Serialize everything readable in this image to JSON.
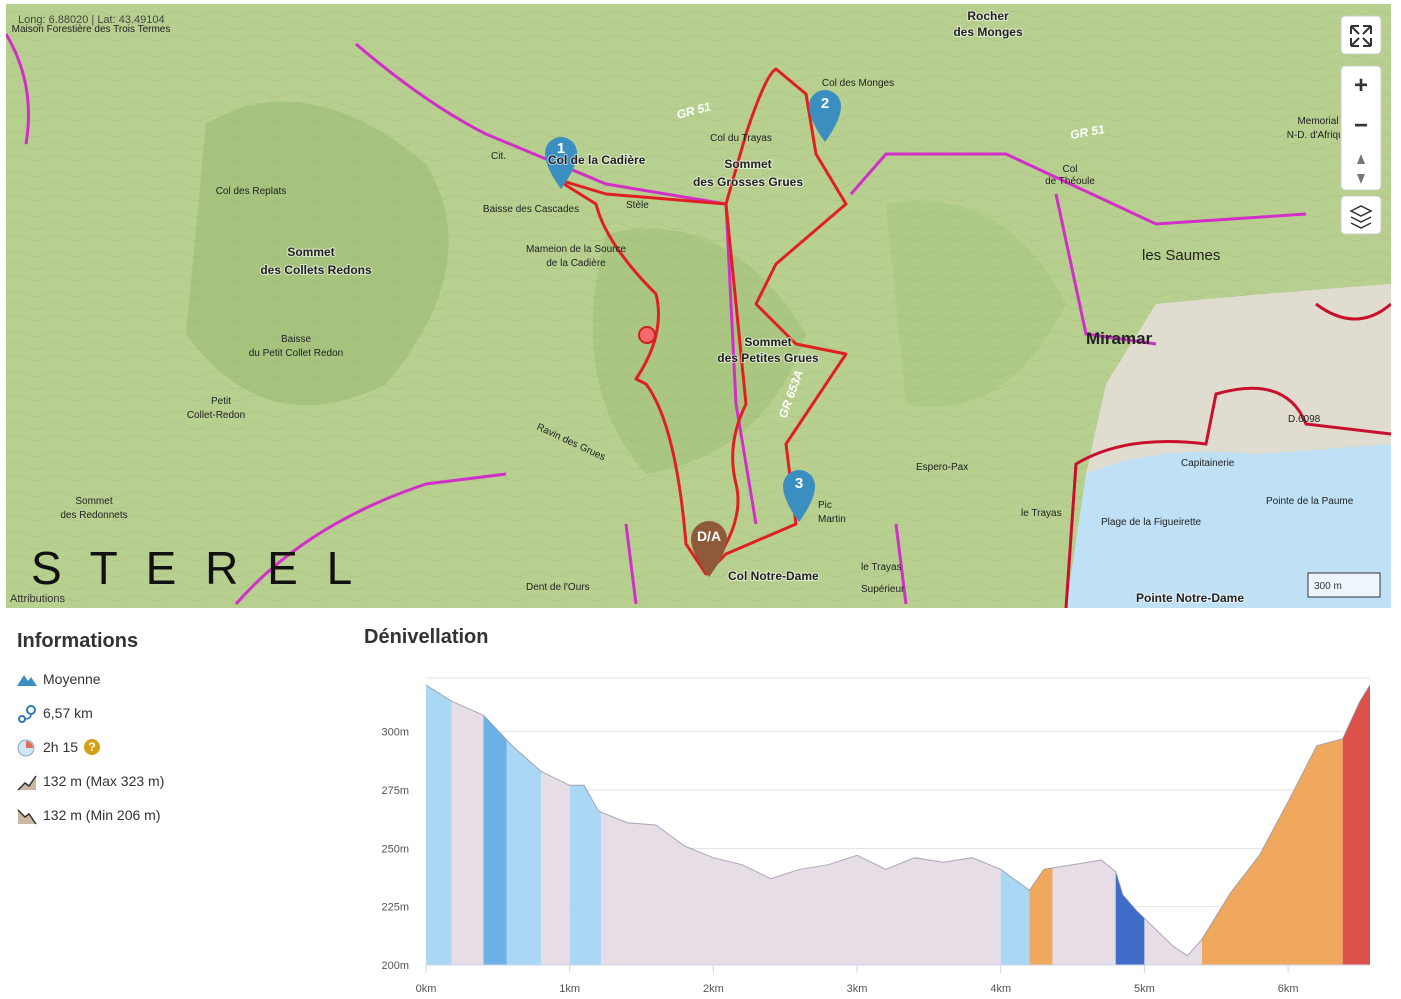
{
  "map": {
    "coords": "Long: 6.88020 | Lat: 43.49104",
    "attributions": "Attributions",
    "scale": "300 m",
    "controls": {
      "zoom_in": "+",
      "zoom_out": "−"
    },
    "markers": [
      "1",
      "2",
      "3",
      "D/A"
    ],
    "labels": [
      "Maison Forestière des Trois Termes",
      "Col des Replats",
      "Sommet",
      "des Collets Redons",
      "Baisse",
      "du Petit Collet Redon",
      "Petit",
      "Collet-Redon",
      "Sommet",
      "des Redonnets",
      "Col de la Cadière",
      "Baisse des Cascades",
      "Mameion de la Source",
      "de la Cadière",
      "Sommet",
      "des Grosses Grues",
      "Col du Trayas",
      "Col des Monges",
      "Rocher",
      "des Monges",
      "Sommet",
      "des Petites Grues",
      "Pic",
      "Martin",
      "Col Notre-Dame",
      "le Trayas",
      "Supérieur",
      "Espero-Pax",
      "Miramar",
      "les Saumes",
      "Col",
      "de Théoule",
      "Memorial",
      "N-D. d'Afrique",
      "Plage de la Figueirette",
      "Pointe de la Paume",
      "Pointe Notre-Dame",
      "GR 51",
      "GR 653A",
      "GR 51",
      "Ravin des Grues",
      "Dent de l'Ours",
      "le Trayas",
      "Stèle",
      "Capitainerie",
      "D.6098",
      "S T E R E L",
      "Cit."
    ]
  },
  "info": {
    "title": "Informations",
    "items": [
      "Moyenne",
      "6,57 km",
      "2h 15",
      "132 m (Max 323 m)",
      "132 m (Min 206 m)"
    ],
    "help": "?"
  },
  "chart_data": {
    "type": "area",
    "title": "Dénivellation",
    "x": [
      0,
      0.18,
      0.4,
      0.6,
      0.8,
      1.0,
      1.1,
      1.2,
      1.4,
      1.6,
      1.8,
      2.0,
      2.2,
      2.4,
      2.6,
      2.8,
      3.0,
      3.2,
      3.4,
      3.6,
      3.8,
      4.0,
      4.2,
      4.3,
      4.5,
      4.7,
      4.8,
      4.85,
      4.95,
      5.0,
      5.2,
      5.3,
      5.4,
      5.6,
      5.8,
      6.0,
      6.2,
      6.38,
      6.5,
      6.57
    ],
    "values": [
      320,
      313,
      307,
      294,
      283,
      277,
      277,
      266,
      261,
      260,
      251,
      246,
      243,
      237,
      241,
      243,
      247,
      241,
      246,
      244,
      246,
      241,
      232,
      241,
      243,
      245,
      240,
      230,
      223,
      220,
      208,
      204,
      211,
      231,
      247,
      270,
      294,
      297,
      313,
      320
    ],
    "line_color": "#8a8a9a",
    "bands": [
      {
        "from": 0,
        "to": 0.18,
        "color": "#a9d7f4"
      },
      {
        "from": 0.18,
        "to": 0.4,
        "color": "#e6dde7"
      },
      {
        "from": 0.4,
        "to": 0.56,
        "color": "#6cb2e6"
      },
      {
        "from": 0.56,
        "to": 0.8,
        "color": "#a9d7f4"
      },
      {
        "from": 0.8,
        "to": 1.0,
        "color": "#e6dde7"
      },
      {
        "from": 1.0,
        "to": 1.22,
        "color": "#a9d7f4"
      },
      {
        "from": 1.22,
        "to": 4.0,
        "color": "#e6dde7"
      },
      {
        "from": 4.0,
        "to": 4.2,
        "color": "#a9d7f4"
      },
      {
        "from": 4.2,
        "to": 4.36,
        "color": "#f0a85f"
      },
      {
        "from": 4.36,
        "to": 4.8,
        "color": "#e6dde7"
      },
      {
        "from": 4.8,
        "to": 5.0,
        "color": "#3f6cc6"
      },
      {
        "from": 5.0,
        "to": 5.4,
        "color": "#e6dde7"
      },
      {
        "from": 5.4,
        "to": 6.38,
        "color": "#f0a85f"
      },
      {
        "from": 6.38,
        "to": 6.57,
        "color": "#dc5149"
      }
    ],
    "xlim": [
      0,
      6.57
    ],
    "ylim": [
      200,
      323
    ],
    "xticks": [
      {
        "value": 0,
        "label": "0km"
      },
      {
        "value": 1,
        "label": "1km"
      },
      {
        "value": 2,
        "label": "2km"
      },
      {
        "value": 3,
        "label": "3km"
      },
      {
        "value": 4,
        "label": "4km"
      },
      {
        "value": 5,
        "label": "5km"
      },
      {
        "value": 6,
        "label": "6km"
      }
    ],
    "yticks": [
      {
        "value": 200,
        "label": "200m"
      },
      {
        "value": 225,
        "label": "225m"
      },
      {
        "value": 250,
        "label": "250m"
      },
      {
        "value": 275,
        "label": "275m"
      },
      {
        "value": 300,
        "label": "300m"
      }
    ],
    "grid": true
  }
}
